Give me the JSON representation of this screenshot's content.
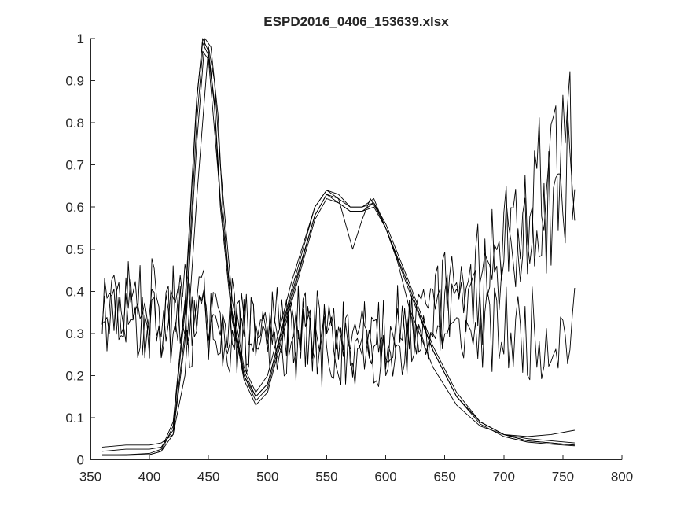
{
  "chart_data": {
    "type": "line",
    "title": "ESPD2016_0406_153639.xlsx",
    "xlabel": "",
    "ylabel": "",
    "xlim": [
      350,
      800
    ],
    "ylim": [
      0,
      1
    ],
    "xticks": [
      350,
      400,
      450,
      500,
      550,
      600,
      650,
      700,
      750,
      800
    ],
    "yticks": [
      0,
      0.1,
      0.2,
      0.3,
      0.4,
      0.5,
      0.6,
      0.7,
      0.8,
      0.9,
      1
    ],
    "ytick_labels": [
      "0",
      "0.1",
      "0.2",
      "0.3",
      "0.4",
      "0.5",
      "0.6",
      "0.7",
      "0.8",
      "0.9",
      "1"
    ],
    "grid": false,
    "line_color": "#000000",
    "axis_color": "#262626",
    "series": [
      {
        "x": [
          360,
          380,
          400,
          410,
          420,
          430,
          440,
          445,
          450,
          455,
          460,
          470,
          480,
          490,
          500,
          520,
          540,
          550,
          560,
          570,
          580,
          590,
          600,
          620,
          640,
          660,
          680,
          700,
          720,
          740,
          760
        ],
        "y": [
          0.01,
          0.01,
          0.012,
          0.02,
          0.08,
          0.35,
          0.85,
          1.0,
          0.97,
          0.85,
          0.62,
          0.35,
          0.2,
          0.14,
          0.17,
          0.38,
          0.58,
          0.63,
          0.62,
          0.6,
          0.6,
          0.61,
          0.56,
          0.42,
          0.27,
          0.16,
          0.09,
          0.06,
          0.045,
          0.04,
          0.035
        ]
      },
      {
        "x": [
          360,
          380,
          400,
          410,
          420,
          430,
          440,
          447,
          452,
          458,
          462,
          470,
          480,
          490,
          500,
          520,
          540,
          550,
          560,
          570,
          580,
          590,
          600,
          620,
          640,
          660,
          680,
          700,
          720,
          740,
          760
        ],
        "y": [
          0.012,
          0.012,
          0.012,
          0.02,
          0.06,
          0.28,
          0.75,
          1.0,
          0.98,
          0.82,
          0.6,
          0.34,
          0.19,
          0.13,
          0.16,
          0.37,
          0.57,
          0.62,
          0.61,
          0.59,
          0.59,
          0.6,
          0.55,
          0.41,
          0.26,
          0.15,
          0.085,
          0.055,
          0.042,
          0.037,
          0.033
        ]
      },
      {
        "x": [
          360,
          380,
          400,
          410,
          420,
          430,
          440,
          445,
          450,
          455,
          460,
          470,
          480,
          490,
          500,
          520,
          540,
          550,
          560,
          565,
          572,
          580,
          587,
          595,
          600,
          620,
          640,
          660,
          680,
          700,
          720,
          740,
          760
        ],
        "y": [
          0.01,
          0.012,
          0.015,
          0.025,
          0.09,
          0.37,
          0.86,
          0.99,
          0.96,
          0.84,
          0.6,
          0.33,
          0.2,
          0.15,
          0.18,
          0.4,
          0.6,
          0.64,
          0.62,
          0.57,
          0.5,
          0.57,
          0.62,
          0.58,
          0.55,
          0.4,
          0.26,
          0.15,
          0.09,
          0.06,
          0.045,
          0.04,
          0.035
        ]
      },
      {
        "x": [
          360,
          380,
          400,
          410,
          420,
          430,
          440,
          450,
          455,
          460,
          470,
          480,
          490,
          500,
          520,
          540,
          550,
          560,
          570,
          580,
          590,
          600,
          610,
          620,
          640,
          660,
          680,
          700,
          720,
          740,
          760
        ],
        "y": [
          0.03,
          0.035,
          0.035,
          0.04,
          0.06,
          0.2,
          0.62,
          0.98,
          0.9,
          0.7,
          0.38,
          0.22,
          0.16,
          0.2,
          0.42,
          0.6,
          0.64,
          0.63,
          0.6,
          0.6,
          0.62,
          0.55,
          0.47,
          0.36,
          0.22,
          0.13,
          0.08,
          0.06,
          0.055,
          0.06,
          0.07
        ]
      },
      {
        "x": [
          360,
          380,
          400,
          410,
          420,
          430,
          440,
          445,
          450,
          460,
          470,
          480,
          490,
          500,
          520,
          540,
          550,
          560,
          570,
          580,
          590,
          600,
          620,
          640,
          660,
          680,
          700,
          720,
          740,
          760
        ],
        "y": [
          0.02,
          0.025,
          0.025,
          0.03,
          0.07,
          0.3,
          0.8,
          0.97,
          0.95,
          0.62,
          0.35,
          0.21,
          0.15,
          0.18,
          0.39,
          0.58,
          0.63,
          0.61,
          0.59,
          0.59,
          0.61,
          0.55,
          0.41,
          0.26,
          0.15,
          0.09,
          0.06,
          0.05,
          0.045,
          0.04
        ]
      }
    ],
    "noisy_series": [
      {
        "x_start": 360,
        "x_end": 760,
        "y_start": 0.36,
        "y_mid": 0.3,
        "y_end": 0.3,
        "amplitude": 0.07,
        "seed": 11
      },
      {
        "x_start": 360,
        "x_end": 760,
        "y_start": 0.35,
        "y_mid": 0.26,
        "y_end": 0.7,
        "amplitude": 0.1,
        "seed": 29
      },
      {
        "x_start": 360,
        "x_end": 760,
        "y_start": 0.38,
        "y_mid": 0.28,
        "y_end": 0.76,
        "amplitude": 0.12,
        "seed": 47
      }
    ]
  }
}
